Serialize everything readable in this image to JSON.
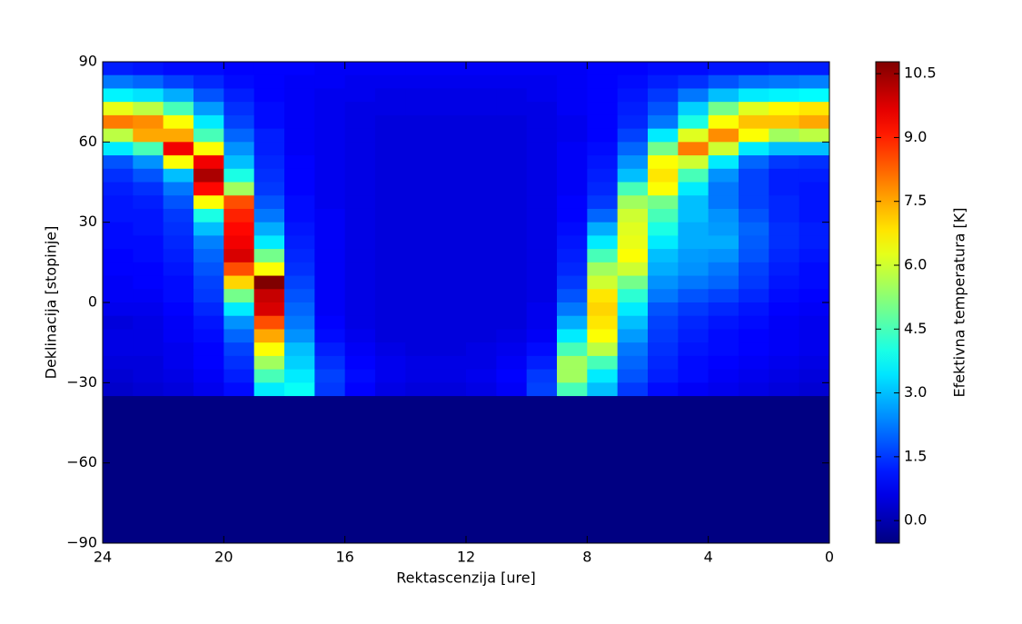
{
  "chart_data": {
    "type": "heatmap",
    "xlabel": "Rektascenzija [ure]",
    "ylabel": "Deklinacija [stopinje]",
    "colorbar_label": "Efektivna temperatura [K]",
    "colormap": "jet",
    "xlim": [
      24,
      0
    ],
    "ylim": [
      -90,
      90
    ],
    "xticks": [
      24,
      20,
      16,
      12,
      8,
      4,
      0
    ],
    "yticks": [
      90,
      60,
      30,
      0,
      {
        "value": -30,
        "label": "−30"
      },
      {
        "value": -60,
        "label": "−60"
      },
      {
        "value": -90,
        "label": "−90"
      }
    ],
    "clim": [
      -0.53,
      10.78
    ],
    "cticks": [
      {
        "value": 0,
        "label": "0.0"
      },
      1.5,
      {
        "value": 3,
        "label": "3.0"
      },
      4.5,
      {
        "value": 6,
        "label": "6.0"
      },
      7.5,
      {
        "value": 9,
        "label": "9.0"
      },
      10.5
    ],
    "xbins": [
      24,
      23,
      22,
      21,
      20,
      19,
      18,
      17,
      16,
      15,
      14,
      13,
      12,
      11,
      10,
      9,
      8,
      7,
      6,
      5,
      4,
      3,
      2,
      1,
      0
    ],
    "ybins": [
      90,
      85,
      80,
      75,
      70,
      65,
      60,
      55,
      50,
      45,
      40,
      35,
      30,
      25,
      20,
      15,
      10,
      5,
      0,
      -5,
      -10,
      -15,
      -20,
      -25,
      -30,
      -35,
      -90
    ],
    "values": [
      [
        1.2,
        1.1,
        1,
        1,
        0.9,
        0.9,
        0.9,
        0.8,
        0.8,
        0.8,
        0.8,
        0.8,
        0.8,
        0.8,
        0.8,
        0.8,
        0.9,
        0.9,
        1,
        1,
        1.1,
        1.1,
        1.2,
        1.2
      ],
      [
        2.2,
        2,
        1.6,
        1.3,
        1,
        0.9,
        0.8,
        0.8,
        0.7,
        0.7,
        0.7,
        0.7,
        0.7,
        0.7,
        0.7,
        0.8,
        0.9,
        1,
        1.2,
        1.4,
        1.8,
        2.1,
        2.2,
        2.3
      ],
      [
        3.6,
        3.4,
        2.8,
        1.8,
        1.2,
        0.9,
        0.8,
        0.7,
        0.7,
        0.6,
        0.6,
        0.6,
        0.6,
        0.6,
        0.7,
        0.8,
        0.9,
        1.1,
        1.5,
        2.2,
        3,
        3.5,
        3.6,
        3.7
      ],
      [
        6.3,
        5.8,
        4.5,
        2.6,
        1.4,
        1,
        0.8,
        0.7,
        0.6,
        0.6,
        0.6,
        0.6,
        0.6,
        0.6,
        0.6,
        0.8,
        0.9,
        1.2,
        1.8,
        3.2,
        5,
        6.2,
        6.6,
        6.8
      ],
      [
        8,
        7.8,
        6.5,
        3.5,
        1.6,
        1,
        0.8,
        0.7,
        0.6,
        0.5,
        0.5,
        0.5,
        0.5,
        0.5,
        0.6,
        0.7,
        0.9,
        1.3,
        2.2,
        4,
        6.5,
        7.2,
        7.2,
        7.5
      ],
      [
        5.8,
        7.5,
        7.5,
        4.5,
        2,
        1.2,
        0.8,
        0.7,
        0.6,
        0.5,
        0.5,
        0.5,
        0.5,
        0.5,
        0.6,
        0.7,
        0.9,
        1.6,
        3.5,
        6.2,
        7.8,
        6.5,
        5.5,
        5.8
      ],
      [
        3.5,
        4.5,
        9.5,
        6.5,
        2.5,
        1.2,
        0.8,
        0.7,
        0.6,
        0.5,
        0.5,
        0.5,
        0.5,
        0.5,
        0.6,
        0.8,
        1,
        2,
        5,
        8,
        6,
        3.5,
        3,
        3
      ],
      [
        1.8,
        2.5,
        6.5,
        9.5,
        3,
        1.3,
        0.9,
        0.7,
        0.6,
        0.5,
        0.5,
        0.5,
        0.5,
        0.5,
        0.6,
        0.8,
        1.1,
        2.5,
        6.5,
        6,
        3.5,
        2,
        1.5,
        1.4
      ],
      [
        1.4,
        1.8,
        3,
        10.3,
        4,
        1.4,
        0.9,
        0.7,
        0.6,
        0.5,
        0.5,
        0.5,
        0.5,
        0.5,
        0.6,
        0.8,
        1.2,
        3,
        6.8,
        4.5,
        2.5,
        1.6,
        1.2,
        1.2
      ],
      [
        1.2,
        1.4,
        2.2,
        9.3,
        5.5,
        1.5,
        0.9,
        0.7,
        0.6,
        0.5,
        0.5,
        0.5,
        0.5,
        0.5,
        0.6,
        0.8,
        1.3,
        4.5,
        6.5,
        3.5,
        2.2,
        1.6,
        1.2,
        1.1
      ],
      [
        1.1,
        1.2,
        1.8,
        6.5,
        8.5,
        1.8,
        1,
        0.7,
        0.6,
        0.5,
        0.5,
        0.5,
        0.5,
        0.5,
        0.6,
        0.9,
        1.5,
        5.5,
        5,
        3,
        2.2,
        1.6,
        1.3,
        1.1
      ],
      [
        1.1,
        1.1,
        1.5,
        4,
        9,
        2.2,
        1,
        0.8,
        0.6,
        0.5,
        0.5,
        0.5,
        0.5,
        0.5,
        0.6,
        0.9,
        2,
        6,
        4.5,
        3,
        2.5,
        1.8,
        1.3,
        1.1
      ],
      [
        1,
        1.1,
        1.4,
        3,
        9.3,
        2.8,
        1.1,
        0.8,
        0.6,
        0.5,
        0.5,
        0.5,
        0.5,
        0.5,
        0.6,
        1,
        2.8,
        6.2,
        4,
        2.8,
        2.6,
        2,
        1.4,
        1.2
      ],
      [
        1,
        1,
        1.3,
        2.3,
        9.5,
        3.5,
        1.2,
        0.8,
        0.6,
        0.5,
        0.5,
        0.5,
        0.5,
        0.5,
        0.6,
        1.1,
        3.5,
        6.3,
        3.5,
        2.8,
        2.8,
        1.9,
        1.4,
        1.2
      ],
      [
        0.9,
        1,
        1.2,
        2,
        9.8,
        5,
        1.3,
        0.8,
        0.6,
        0.5,
        0.5,
        0.5,
        0.5,
        0.5,
        0.6,
        1.2,
        4.5,
        6.5,
        3,
        2.6,
        2.5,
        1.8,
        1.3,
        1.1
      ],
      [
        0.9,
        0.9,
        1.1,
        1.8,
        8.5,
        6.5,
        1.4,
        0.8,
        0.6,
        0.5,
        0.5,
        0.5,
        0.5,
        0.5,
        0.6,
        1.3,
        5.5,
        6,
        2.8,
        2.5,
        2.2,
        1.6,
        1.2,
        1
      ],
      [
        0.8,
        0.9,
        1,
        1.6,
        7,
        10.8,
        1.6,
        0.8,
        0.6,
        0.5,
        0.5,
        0.5,
        0.5,
        0.5,
        0.6,
        1.5,
        6,
        5,
        2.5,
        2.2,
        2,
        1.5,
        1.1,
        1
      ],
      [
        0.8,
        0.8,
        1,
        1.5,
        5,
        10,
        1.8,
        0.8,
        0.6,
        0.5,
        0.5,
        0.5,
        0.5,
        0.5,
        0.6,
        1.8,
        6.8,
        4.2,
        2.2,
        1.8,
        1.6,
        1.3,
        1,
        0.9
      ],
      [
        0.7,
        0.7,
        0.9,
        1.3,
        3.5,
        9.8,
        2,
        0.8,
        0.6,
        0.5,
        0.5,
        0.5,
        0.5,
        0.5,
        0.7,
        2.2,
        7,
        3.5,
        1.8,
        1.5,
        1.3,
        1.1,
        0.9,
        0.8
      ],
      [
        0.5,
        0.6,
        0.8,
        1.1,
        2.5,
        8.5,
        2.2,
        0.9,
        0.6,
        0.5,
        0.5,
        0.5,
        0.5,
        0.5,
        0.7,
        2.8,
        6.8,
        3,
        1.6,
        1.3,
        1.1,
        1,
        0.8,
        0.7
      ],
      [
        0.6,
        0.6,
        0.8,
        1,
        2,
        7.5,
        2.5,
        1,
        0.7,
        0.5,
        0.5,
        0.5,
        0.5,
        0.6,
        0.8,
        3.5,
        6.5,
        2.6,
        1.5,
        1.2,
        1,
        0.9,
        0.8,
        0.7
      ],
      [
        0.6,
        0.6,
        0.7,
        0.9,
        1.6,
        6.5,
        3,
        1.2,
        0.8,
        0.6,
        0.5,
        0.5,
        0.6,
        0.7,
        1,
        4.5,
        5.8,
        2.2,
        1.4,
        1.1,
        1,
        0.9,
        0.8,
        0.7
      ],
      [
        0.5,
        0.5,
        0.7,
        0.9,
        1.4,
        5.5,
        3.2,
        1.4,
        0.9,
        0.7,
        0.6,
        0.6,
        0.6,
        0.8,
        1.2,
        5.5,
        4.5,
        2,
        1.3,
        1,
        0.9,
        0.8,
        0.7,
        0.6
      ],
      [
        0.4,
        0.5,
        0.6,
        0.8,
        1.2,
        4.5,
        3.5,
        1.6,
        1,
        0.7,
        0.6,
        0.6,
        0.7,
        0.9,
        1.5,
        5.5,
        3.5,
        1.8,
        1.2,
        1,
        0.8,
        0.7,
        0.6,
        0.5
      ],
      [
        0.3,
        0.4,
        0.5,
        0.7,
        1,
        3.5,
        3.8,
        1.5,
        0.9,
        0.6,
        0.5,
        0.5,
        0.6,
        0.8,
        1.6,
        4.5,
        3,
        1.5,
        1,
        0.8,
        0.7,
        0.6,
        0.5,
        0.4
      ],
      [
        -0.5,
        -0.5,
        -0.5,
        -0.5,
        -0.5,
        -0.5,
        -0.5,
        -0.5,
        -0.5,
        -0.5,
        -0.5,
        -0.5,
        -0.5,
        -0.5,
        -0.5,
        -0.5,
        -0.5,
        -0.5,
        -0.5,
        -0.5,
        -0.5,
        -0.5,
        -0.5,
        -0.5
      ]
    ]
  }
}
